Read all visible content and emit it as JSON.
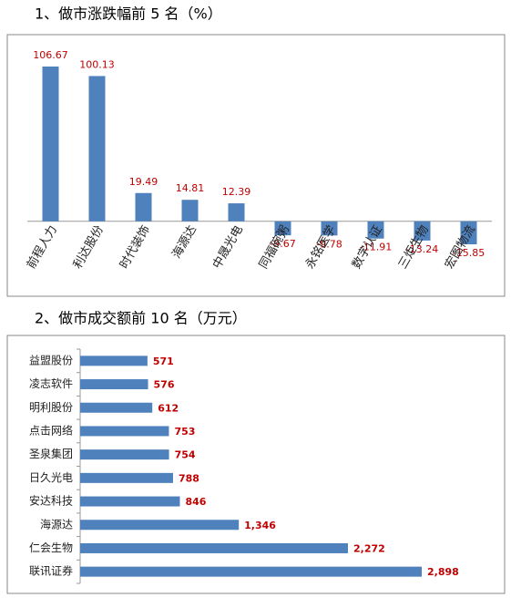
{
  "chart_data": [
    {
      "type": "bar",
      "title": "1、做市涨跌幅前 5 名（%）",
      "categories": [
        "前程人力",
        "利达股份",
        "时代装饰",
        "海源达",
        "中晟光电",
        "同福碗粥",
        "永铭医学",
        "数字认证",
        "三炬生物",
        "宏图物流"
      ],
      "values": [
        106.67,
        100.13,
        19.49,
        14.81,
        12.39,
        -9.67,
        -9.78,
        -11.91,
        -13.24,
        -15.85
      ],
      "color": "#4f81bd",
      "label_color": "#c00000"
    },
    {
      "type": "barh",
      "title": "2、做市成交额前 10 名（万元）",
      "categories": [
        "益盟股份",
        "凌志软件",
        "明利股份",
        "点击网络",
        "圣泉集团",
        "日久光电",
        "安达科技",
        "海源达",
        "仁会生物",
        "联讯证券"
      ],
      "values": [
        571,
        576,
        612,
        753,
        754,
        788,
        846,
        1346,
        2272,
        2898
      ],
      "value_labels": [
        "571",
        "576",
        "612",
        "753",
        "754",
        "788",
        "846",
        "1,346",
        "2,272",
        "2,898"
      ],
      "color": "#4f81bd",
      "label_color": "#c00000"
    }
  ]
}
